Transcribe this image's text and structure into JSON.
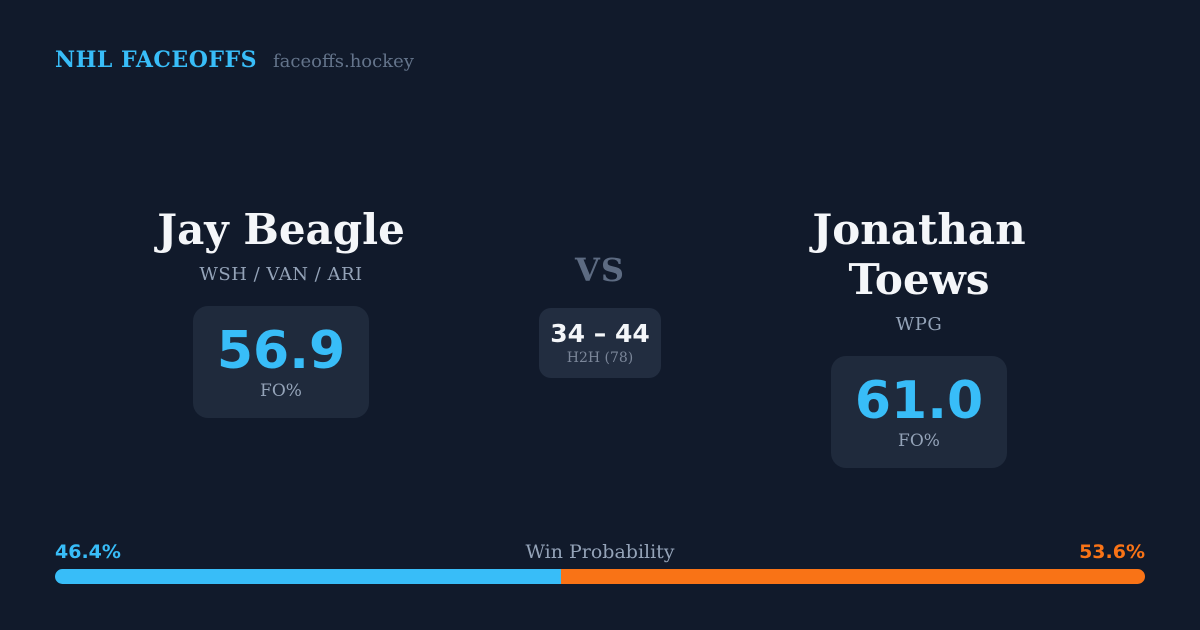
{
  "header": {
    "brand": "NHL FACEOFFS",
    "site": "faceoffs.hockey"
  },
  "matchup": {
    "vs_label": "VS",
    "h2h": {
      "score": "34 – 44",
      "label": "H2H (78)"
    },
    "players": [
      {
        "name": "Jay Beagle",
        "teams": "WSH / VAN / ARI",
        "fo_pct": "56.9",
        "fo_label": "FO%"
      },
      {
        "name": "Jonathan Toews",
        "teams": "WPG",
        "fo_pct": "61.0",
        "fo_label": "FO%"
      }
    ]
  },
  "win_probability": {
    "label": "Win Probability",
    "left_pct_text": "46.4%",
    "right_pct_text": "53.6%",
    "left_value": 46.4,
    "right_value": 53.6
  },
  "colors": {
    "background": "#111a2b",
    "panel": "#1f2a3c",
    "accent_blue": "#38bdf8",
    "accent_orange": "#f97316"
  }
}
